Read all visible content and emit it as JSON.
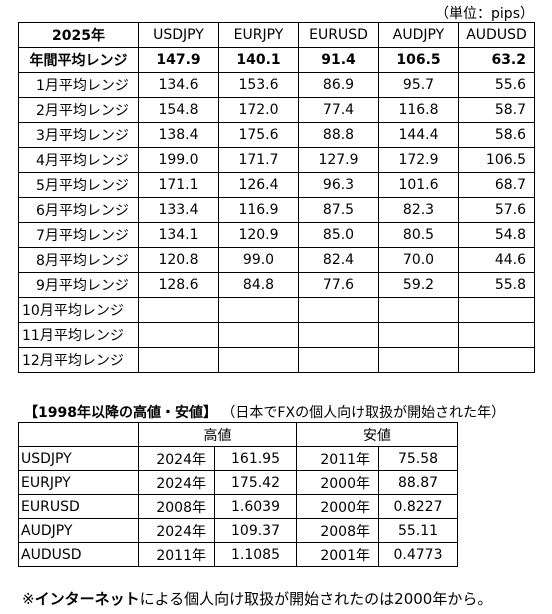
{
  "unit_label": "（単位：pips）",
  "range_table": {
    "corner": "2025年",
    "pairs": [
      "USDJPY",
      "EURJPY",
      "EURUSD",
      "AUDJPY",
      "AUDUSD"
    ],
    "annual": {
      "label": "年間平均レンジ",
      "values": [
        "147.9",
        "140.1",
        "91.4",
        "106.5",
        "63.2"
      ]
    },
    "months": [
      {
        "label": "1月平均レンジ",
        "values": [
          "134.6",
          "153.6",
          "86.9",
          "95.7",
          "55.6"
        ]
      },
      {
        "label": "2月平均レンジ",
        "values": [
          "154.8",
          "172.0",
          "77.4",
          "116.8",
          "58.7"
        ]
      },
      {
        "label": "3月平均レンジ",
        "values": [
          "138.4",
          "175.6",
          "88.8",
          "144.4",
          "58.6"
        ]
      },
      {
        "label": "4月平均レンジ",
        "values": [
          "199.0",
          "171.7",
          "127.9",
          "172.9",
          "106.5"
        ]
      },
      {
        "label": "5月平均レンジ",
        "values": [
          "171.1",
          "126.4",
          "96.3",
          "101.6",
          "68.7"
        ]
      },
      {
        "label": "6月平均レンジ",
        "values": [
          "133.4",
          "116.9",
          "87.5",
          "82.3",
          "57.6"
        ]
      },
      {
        "label": "7月平均レンジ",
        "values": [
          "134.1",
          "120.9",
          "85.0",
          "80.5",
          "54.8"
        ]
      },
      {
        "label": "8月平均レンジ",
        "values": [
          "120.8",
          "99.0",
          "82.4",
          "70.0",
          "44.6"
        ]
      },
      {
        "label": "9月平均レンジ",
        "values": [
          "128.6",
          "84.8",
          "77.6",
          "59.2",
          "55.8"
        ]
      },
      {
        "label": "10月平均レンジ",
        "values": [
          "",
          "",
          "",
          "",
          ""
        ]
      },
      {
        "label": "11月平均レンジ",
        "values": [
          "",
          "",
          "",
          "",
          ""
        ]
      },
      {
        "label": "12月平均レンジ",
        "values": [
          "",
          "",
          "",
          "",
          ""
        ]
      }
    ]
  },
  "hilo_section": {
    "title_bold": "【1998年以降の高値・安値】",
    "title_note": "（日本でFXの個人向け取扱が開始された年）",
    "header_high": "高値",
    "header_low": "安値",
    "rows": [
      {
        "pair": "USDJPY",
        "high_year": "2024年",
        "high": "161.95",
        "low_year": "2011年",
        "low": "75.58"
      },
      {
        "pair": "EURJPY",
        "high_year": "2024年",
        "high": "175.42",
        "low_year": "2000年",
        "low": "88.87"
      },
      {
        "pair": "EURUSD",
        "high_year": "2008年",
        "high": "1.6039",
        "low_year": "2000年",
        "low": "0.8227"
      },
      {
        "pair": "AUDJPY",
        "high_year": "2024年",
        "high": "109.37",
        "low_year": "2008年",
        "low": "55.11"
      },
      {
        "pair": "AUDUSD",
        "high_year": "2011年",
        "high": "1.1085",
        "low_year": "2001年",
        "low": "0.4773"
      }
    ]
  },
  "footnote": {
    "prefix": "※",
    "bold": "インターネット",
    "rest": "による個人向け取扱が開始されたのは2000年から。"
  }
}
